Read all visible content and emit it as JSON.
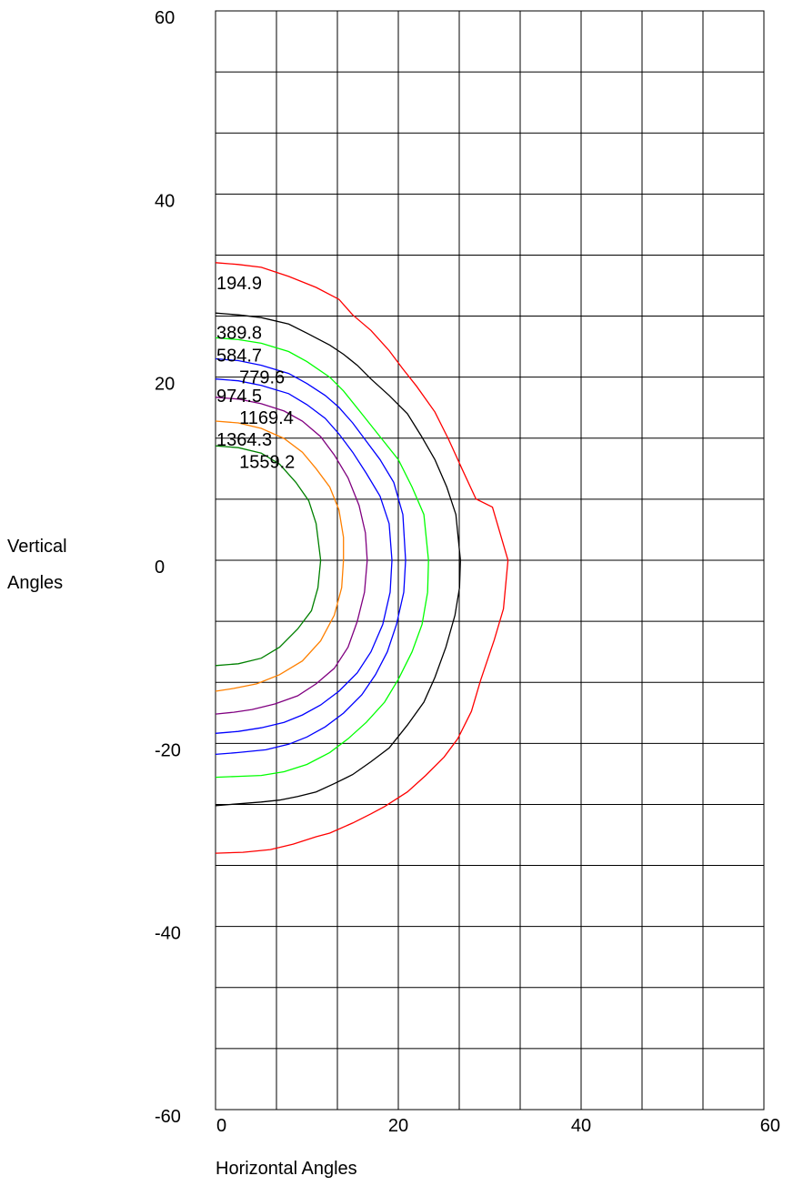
{
  "chart_data": {
    "type": "contour",
    "xlabel": "Horizontal Angles",
    "ylabel_lines": [
      "Vertical",
      "Angles"
    ],
    "xlim": [
      0,
      60
    ],
    "ylim": [
      -60,
      60
    ],
    "x_ticks": [
      0,
      20,
      40,
      60
    ],
    "y_ticks": [
      60,
      40,
      20,
      0,
      -20,
      -40,
      -60
    ],
    "x_tick_labels": [
      "0",
      "20",
      "40",
      "60"
    ],
    "y_tick_labels": [
      "60",
      "40",
      "20",
      "0",
      "-20",
      "-40",
      "-60"
    ],
    "grid": true,
    "grid_x_step": 6.667,
    "grid_y_step": 6.667,
    "series": [
      {
        "name": "194.9",
        "label": "194.9",
        "color": "#ff0000",
        "label_at": [
          0,
          29.6
        ],
        "points": [
          [
            0,
            32.5
          ],
          [
            2.5,
            32.3
          ],
          [
            5,
            32
          ],
          [
            8,
            31
          ],
          [
            11,
            29.8
          ],
          [
            13.5,
            28.5
          ],
          [
            15,
            26.8
          ],
          [
            17,
            25.1
          ],
          [
            19,
            22.9
          ],
          [
            20.5,
            20.9
          ],
          [
            22,
            19
          ],
          [
            24,
            16.2
          ],
          [
            25.5,
            13.2
          ],
          [
            27,
            9.9
          ],
          [
            28.5,
            6.7
          ],
          [
            30.3,
            5.8
          ],
          [
            32,
            0
          ],
          [
            31.5,
            -5.3
          ],
          [
            30.5,
            -8.7
          ],
          [
            29,
            -13.1
          ],
          [
            28,
            -16.5
          ],
          [
            26.5,
            -19.5
          ],
          [
            25,
            -21.5
          ],
          [
            23,
            -23.5
          ],
          [
            21,
            -25.3
          ],
          [
            18.5,
            -26.9
          ],
          [
            17,
            -27.7
          ],
          [
            15,
            -28.7
          ],
          [
            12.5,
            -29.8
          ],
          [
            11,
            -30.2
          ],
          [
            8.5,
            -31
          ],
          [
            6,
            -31.6
          ],
          [
            3,
            -31.9
          ],
          [
            0,
            -32
          ]
        ]
      },
      {
        "name": "389.8",
        "label": "389.8",
        "color": "#000000",
        "label_at": [
          0,
          24.2
        ],
        "points": [
          [
            0,
            27
          ],
          [
            2.5,
            26.8
          ],
          [
            5,
            26.5
          ],
          [
            8,
            25.8
          ],
          [
            10,
            24.8
          ],
          [
            12.5,
            23.5
          ],
          [
            14,
            22.5
          ],
          [
            15.5,
            21.3
          ],
          [
            17,
            19.8
          ],
          [
            19,
            18
          ],
          [
            21,
            16
          ],
          [
            22.5,
            13.6
          ],
          [
            24,
            11
          ],
          [
            25.3,
            8
          ],
          [
            26.3,
            5
          ],
          [
            26.8,
            0
          ],
          [
            26.7,
            -3
          ],
          [
            26.2,
            -6
          ],
          [
            25.2,
            -9.5
          ],
          [
            24,
            -12.8
          ],
          [
            22.8,
            -15.5
          ],
          [
            21,
            -18
          ],
          [
            19,
            -20.5
          ],
          [
            17,
            -22
          ],
          [
            15,
            -23.4
          ],
          [
            13,
            -24.4
          ],
          [
            11,
            -25.3
          ],
          [
            9,
            -25.8
          ],
          [
            7,
            -26.2
          ],
          [
            5,
            -26.4
          ],
          [
            2.5,
            -26.6
          ],
          [
            0,
            -26.8
          ]
        ]
      },
      {
        "name": "584.7",
        "label": "584.7",
        "color": "#00ff00",
        "label_at": [
          0,
          21.7
        ],
        "points": [
          [
            0,
            24.3
          ],
          [
            2.5,
            24.1
          ],
          [
            5,
            23.7
          ],
          [
            8,
            22.8
          ],
          [
            10,
            21.7
          ],
          [
            12.5,
            20
          ],
          [
            14,
            18.5
          ],
          [
            16,
            16
          ],
          [
            18,
            13.5
          ],
          [
            20,
            11
          ],
          [
            21.5,
            8
          ],
          [
            22.8,
            5
          ],
          [
            23.3,
            0
          ],
          [
            23.2,
            -3.5
          ],
          [
            22.6,
            -7
          ],
          [
            21.5,
            -10
          ],
          [
            20,
            -13
          ],
          [
            18.5,
            -15.5
          ],
          [
            16.5,
            -17.7
          ],
          [
            14.5,
            -19.5
          ],
          [
            12.5,
            -21
          ],
          [
            10,
            -22.3
          ],
          [
            7.5,
            -23.1
          ],
          [
            5,
            -23.5
          ],
          [
            2.5,
            -23.6
          ],
          [
            0,
            -23.7
          ]
        ]
      },
      {
        "name": "779.6",
        "label": "779.6",
        "color": "#0000ff",
        "label_at": [
          2.5,
          19.3
        ],
        "points": [
          [
            0,
            22
          ],
          [
            2.5,
            21.8
          ],
          [
            5,
            21.3
          ],
          [
            8,
            20.4
          ],
          [
            10,
            19.3
          ],
          [
            12,
            18
          ],
          [
            13.5,
            16.7
          ],
          [
            15,
            15
          ],
          [
            16.5,
            13
          ],
          [
            18,
            11
          ],
          [
            19.5,
            8.5
          ],
          [
            20.5,
            5
          ],
          [
            20.8,
            0
          ],
          [
            20.6,
            -3.5
          ],
          [
            19.8,
            -7
          ],
          [
            18.8,
            -10
          ],
          [
            17.5,
            -12.5
          ],
          [
            16,
            -14.7
          ],
          [
            14,
            -16.7
          ],
          [
            12,
            -18.2
          ],
          [
            10,
            -19.3
          ],
          [
            8,
            -20.1
          ],
          [
            5.5,
            -20.7
          ],
          [
            2.5,
            -21
          ],
          [
            0,
            -21.2
          ]
        ]
      },
      {
        "name": "974.5",
        "label": "974.5",
        "color": "#0000ff",
        "label_at": [
          0,
          17.3
        ],
        "points": [
          [
            0,
            19.8
          ],
          [
            2.5,
            19.6
          ],
          [
            5,
            19.1
          ],
          [
            8,
            18.2
          ],
          [
            10,
            17
          ],
          [
            12,
            15.5
          ],
          [
            13.5,
            13.8
          ],
          [
            15,
            11.8
          ],
          [
            16.5,
            9.5
          ],
          [
            18,
            7
          ],
          [
            19,
            4
          ],
          [
            19.3,
            0
          ],
          [
            19.1,
            -3.5
          ],
          [
            18.3,
            -7
          ],
          [
            17,
            -10
          ],
          [
            15.5,
            -12.3
          ],
          [
            13.5,
            -14.3
          ],
          [
            11.5,
            -15.8
          ],
          [
            9.5,
            -16.9
          ],
          [
            7.5,
            -17.7
          ],
          [
            5,
            -18.3
          ],
          [
            2.5,
            -18.7
          ],
          [
            0,
            -18.9
          ]
        ]
      },
      {
        "name": "1169.4",
        "label": "1169.4",
        "color": "#800080",
        "label_at": [
          2.5,
          14.9
        ],
        "points": [
          [
            0,
            17.8
          ],
          [
            2.5,
            17.6
          ],
          [
            5,
            17.1
          ],
          [
            7.5,
            16.3
          ],
          [
            9.5,
            15.2
          ],
          [
            11.5,
            13.5
          ],
          [
            13,
            11.5
          ],
          [
            14.5,
            9
          ],
          [
            15.7,
            6
          ],
          [
            16.4,
            3
          ],
          [
            16.6,
            0
          ],
          [
            16.3,
            -3.5
          ],
          [
            15.5,
            -6.7
          ],
          [
            14.5,
            -9.5
          ],
          [
            13,
            -11.8
          ],
          [
            11,
            -13.5
          ],
          [
            9,
            -14.8
          ],
          [
            6.5,
            -15.7
          ],
          [
            4,
            -16.3
          ],
          [
            2,
            -16.6
          ],
          [
            0,
            -16.8
          ]
        ]
      },
      {
        "name": "1364.3",
        "label": "1364.3",
        "color": "#ff8000",
        "label_at": [
          0,
          12.5
        ],
        "points": [
          [
            0,
            15.2
          ],
          [
            2.5,
            15
          ],
          [
            5,
            14.4
          ],
          [
            7.5,
            13.3
          ],
          [
            9.5,
            11.8
          ],
          [
            11,
            10
          ],
          [
            12.5,
            8
          ],
          [
            13.5,
            5.5
          ],
          [
            14,
            2.5
          ],
          [
            14,
            0
          ],
          [
            13.8,
            -3
          ],
          [
            13,
            -6
          ],
          [
            11.5,
            -8.8
          ],
          [
            9.5,
            -11
          ],
          [
            7,
            -12.5
          ],
          [
            4.5,
            -13.5
          ],
          [
            2,
            -14
          ],
          [
            0,
            -14.3
          ]
        ]
      },
      {
        "name": "1559.2",
        "label": "1559.2",
        "color": "#008000",
        "label_at": [
          2.5,
          10.1
        ],
        "points": [
          [
            0,
            12.5
          ],
          [
            2.5,
            12.3
          ],
          [
            5,
            11.7
          ],
          [
            7,
            10.5
          ],
          [
            8.8,
            8.5
          ],
          [
            10.2,
            6.5
          ],
          [
            11,
            4
          ],
          [
            11.5,
            0
          ],
          [
            11.2,
            -3
          ],
          [
            10.5,
            -5.5
          ],
          [
            9,
            -7.5
          ],
          [
            7,
            -9.5
          ],
          [
            5,
            -10.7
          ],
          [
            2.5,
            -11.3
          ],
          [
            0,
            -11.5
          ]
        ]
      }
    ]
  }
}
